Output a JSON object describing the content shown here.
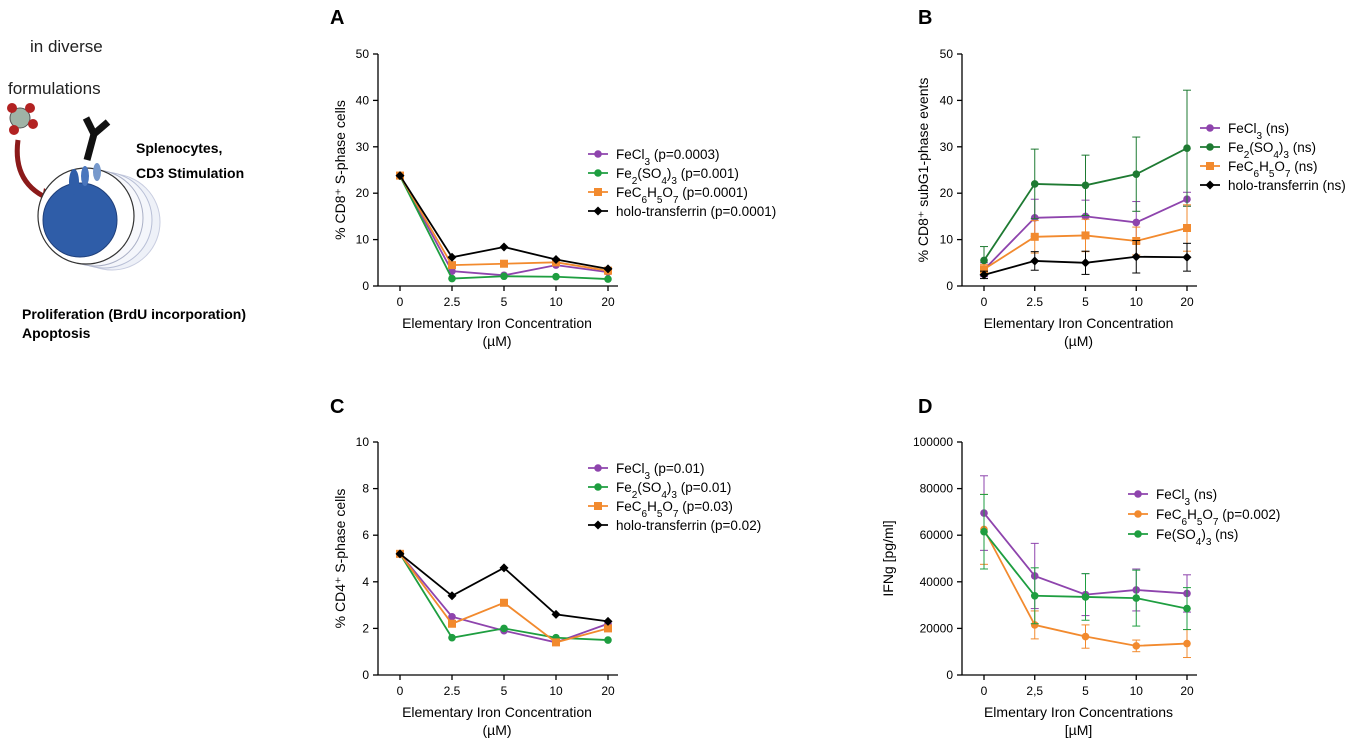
{
  "schematic": {
    "line1": "in diverse",
    "line2": "formulations",
    "stim1": "Splenocytes,",
    "stim2": "CD3 Stimulation",
    "out1": "Proliferation (BrdU incorporation)",
    "out2": "Apoptosis"
  },
  "chart_data": [
    {
      "panel": "A",
      "type": "line",
      "categories": [
        "0",
        "2.5",
        "5",
        "10",
        "20"
      ],
      "ylabel": "% CD8⁺ S-phase cells",
      "xlabel": "Elementary Iron Concentration",
      "xlabel2": "(µM)",
      "ylim": [
        0,
        50
      ],
      "yticks": [
        0,
        10,
        20,
        30,
        40,
        50
      ],
      "series": [
        {
          "name": "FeCl3",
          "label_pre": "FeCl",
          "label_sub": "3",
          "label_post": " (p=0.0003)",
          "color": "#8e44ad",
          "marker": "circle",
          "values": [
            23.8,
            3.2,
            2.3,
            4.5,
            3.0
          ]
        },
        {
          "name": "Fe2(SO4)3",
          "label_pre": "Fe",
          "label_sub": "2",
          "label_post": "(SO",
          "label_sub2": "4",
          "label_post2": ")",
          "label_sub3": "3",
          "label_post3": " (p=0.001)",
          "color": "#1e9e40",
          "marker": "circle",
          "values": [
            23.7,
            1.6,
            2.1,
            2.0,
            1.5
          ]
        },
        {
          "name": "FeC6H5O7",
          "label_pre": "FeC",
          "label_sub": "6",
          "label_post": "H",
          "label_sub2": "5",
          "label_post2": "O",
          "label_sub3": "7",
          "label_post3": " (p=0.0001)",
          "color": "#f28a2e",
          "marker": "square",
          "values": [
            23.8,
            4.5,
            4.8,
            5.1,
            3.3
          ]
        },
        {
          "name": "holo-transferrin",
          "label_pre": "holo-transferrin (p=0.0001)",
          "color": "#000000",
          "marker": "diamond",
          "values": [
            23.8,
            6.2,
            8.4,
            5.7,
            3.7
          ]
        }
      ]
    },
    {
      "panel": "B",
      "type": "line",
      "categories": [
        "0",
        "2.5",
        "5",
        "10",
        "20"
      ],
      "ylabel": "% CD8⁺ subG1-phase events",
      "xlabel": "Elementary Iron Concentration",
      "xlabel2": "(µM)",
      "ylim": [
        0,
        50
      ],
      "yticks": [
        0,
        10,
        20,
        30,
        40,
        50
      ],
      "series": [
        {
          "name": "FeCl3",
          "label_pre": "FeCl",
          "label_sub": "3",
          "label_post": " (ns)",
          "color": "#8e44ad",
          "marker": "circle",
          "values": [
            3.5,
            14.7,
            15.0,
            13.7,
            18.7
          ],
          "err": [
            1.5,
            4.0,
            3.5,
            4.5,
            1.5
          ]
        },
        {
          "name": "Fe2(SO4)3",
          "label_pre": "Fe",
          "label_sub": "2",
          "label_post": "(SO",
          "label_sub2": "4",
          "label_post2": ")",
          "label_sub3": "3",
          "label_post3": " (ns)",
          "color": "#1e7a32",
          "marker": "circle",
          "values": [
            5.5,
            22.0,
            21.7,
            24.1,
            29.7
          ],
          "err": [
            3.0,
            7.5,
            6.5,
            8.0,
            12.5
          ]
        },
        {
          "name": "FeC6H5O7",
          "label_pre": "FeC",
          "label_sub": "6",
          "label_post": "H",
          "label_sub2": "5",
          "label_post2": "O",
          "label_sub3": "7",
          "label_post3": " (ns)",
          "color": "#f28a2e",
          "marker": "square",
          "values": [
            3.6,
            10.6,
            10.9,
            9.7,
            12.5
          ],
          "err": [
            1.0,
            3.5,
            3.5,
            3.0,
            5.0
          ]
        },
        {
          "name": "holo-transferrin",
          "label_pre": "holo-transferrin (ns)",
          "color": "#000000",
          "marker": "diamond",
          "values": [
            2.4,
            5.4,
            5.0,
            6.3,
            6.2
          ],
          "err": [
            0.8,
            2.0,
            2.5,
            3.5,
            3.0
          ]
        }
      ]
    },
    {
      "panel": "C",
      "type": "line",
      "categories": [
        "0",
        "2.5",
        "5",
        "10",
        "20"
      ],
      "ylabel": "% CD4⁺ S-phase cells",
      "xlabel": "Elementary Iron Concentration",
      "xlabel2": "(µM)",
      "ylim": [
        0,
        10
      ],
      "yticks": [
        0,
        2,
        4,
        6,
        8,
        10
      ],
      "series": [
        {
          "name": "FeCl3",
          "label_pre": "FeCl",
          "label_sub": "3",
          "label_post": " (p=0.01)",
          "color": "#8e44ad",
          "marker": "circle",
          "values": [
            5.2,
            2.5,
            1.9,
            1.4,
            2.2
          ]
        },
        {
          "name": "Fe2(SO4)3",
          "label_pre": "Fe",
          "label_sub": "2",
          "label_post": "(SO",
          "label_sub2": "4",
          "label_post2": ")",
          "label_sub3": "3",
          "label_post3": " (p=0.01)",
          "color": "#1e9e40",
          "marker": "circle",
          "values": [
            5.2,
            1.6,
            2.0,
            1.6,
            1.5
          ]
        },
        {
          "name": "FeC6H5O7",
          "label_pre": "FeC",
          "label_sub": "6",
          "label_post": "H",
          "label_sub2": "5",
          "label_post2": "O",
          "label_sub3": "7",
          "label_post3": " (p=0.03)",
          "color": "#f28a2e",
          "marker": "square",
          "values": [
            5.2,
            2.2,
            3.1,
            1.4,
            2.0
          ]
        },
        {
          "name": "holo-transferrin",
          "label_pre": "holo-transferrin (p=0.02)",
          "color": "#000000",
          "marker": "diamond",
          "values": [
            5.2,
            3.4,
            4.6,
            2.6,
            2.3
          ]
        }
      ]
    },
    {
      "panel": "D",
      "type": "line",
      "categories": [
        "0",
        "2,5",
        "5",
        "10",
        "20"
      ],
      "ylabel": "IFNg [pg/ml]",
      "xlabel": "Elmentary Iron Concentrations",
      "xlabel2": "[µM]",
      "ylim": [
        0,
        100000
      ],
      "yticks": [
        0,
        20000,
        40000,
        60000,
        80000,
        100000
      ],
      "series": [
        {
          "name": "FeCl3",
          "label_pre": "FeCl",
          "label_sub": "3",
          "label_post": " (ns)",
          "color": "#8e44ad",
          "marker": "circle",
          "values": [
            69500,
            42500,
            34500,
            36500,
            35000
          ],
          "err": [
            16000,
            14000,
            9000,
            9000,
            8000
          ]
        },
        {
          "name": "FeC6H5O7",
          "label_pre": "FeC",
          "label_sub": "6",
          "label_post": "H",
          "label_sub2": "5",
          "label_post2": "O",
          "label_sub3": "7",
          "label_post3": " (p=0.002)",
          "color": "#f28a2e",
          "marker": "circle",
          "values": [
            62500,
            21500,
            16500,
            12500,
            13500
          ],
          "err": [
            15000,
            6000,
            5000,
            2500,
            6000
          ]
        },
        {
          "name": "Fe(SO4)3",
          "label_pre": "Fe(SO",
          "label_sub": "4",
          "label_post": ")",
          "label_sub2": "3",
          "label_post2": " (ns)",
          "color": "#1e9e40",
          "marker": "circle",
          "values": [
            61500,
            34000,
            33500,
            33000,
            28500
          ],
          "err": [
            16000,
            12000,
            10000,
            12000,
            9000
          ]
        }
      ]
    }
  ]
}
